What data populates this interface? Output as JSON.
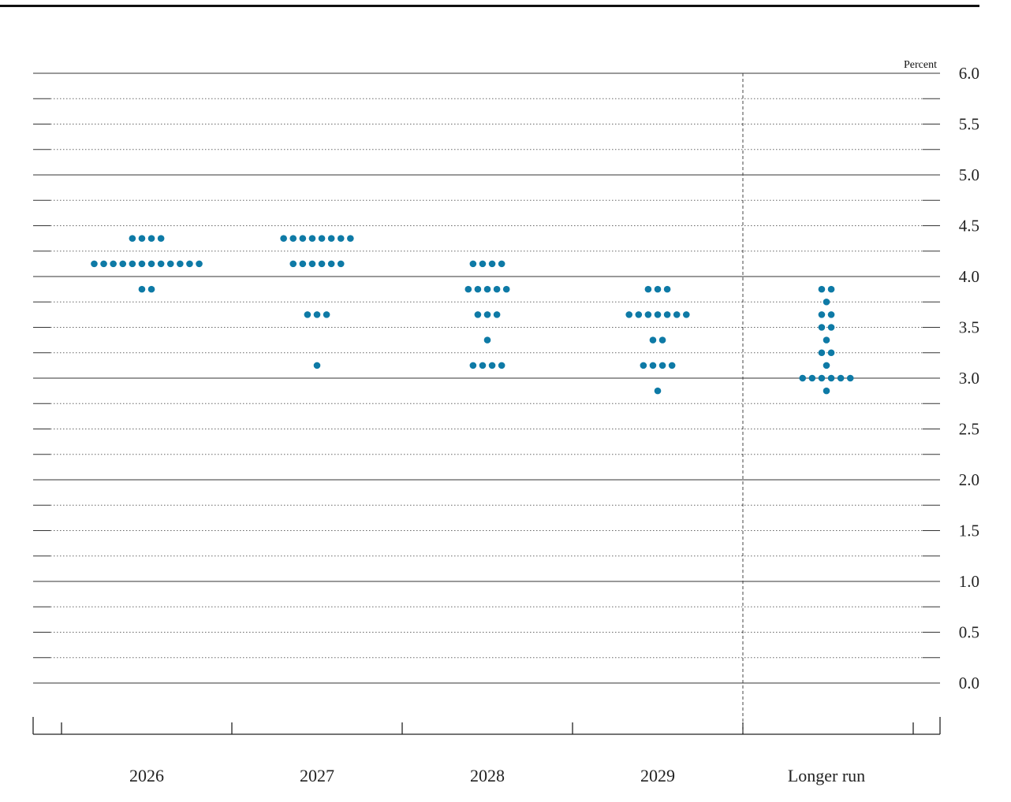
{
  "chart_data": {
    "type": "scatter",
    "unit_label": "Percent",
    "ylim": [
      0,
      6
    ],
    "y_ticks": [
      "6.0",
      "5.5",
      "5.0",
      "4.5",
      "4.0",
      "3.5",
      "3.0",
      "2.5",
      "2.0",
      "1.5",
      "1.0",
      "0.5",
      "0.0"
    ],
    "categories": [
      "2026",
      "2027",
      "2028",
      "2029",
      "Longer run"
    ],
    "dot_color": "#0e7aa6",
    "grid": "dotted every 0.25, solid every 1.0",
    "columns": [
      {
        "category": "2026",
        "points": [
          {
            "y": 4.375,
            "count": 4
          },
          {
            "y": 4.125,
            "count": 12
          },
          {
            "y": 3.875,
            "count": 2
          }
        ]
      },
      {
        "category": "2027",
        "points": [
          {
            "y": 4.375,
            "count": 8
          },
          {
            "y": 4.125,
            "count": 6
          },
          {
            "y": 3.625,
            "count": 3
          },
          {
            "y": 3.125,
            "count": 1
          }
        ]
      },
      {
        "category": "2028",
        "points": [
          {
            "y": 4.125,
            "count": 4
          },
          {
            "y": 3.875,
            "count": 5
          },
          {
            "y": 3.625,
            "count": 3
          },
          {
            "y": 3.375,
            "count": 1
          },
          {
            "y": 3.125,
            "count": 4
          }
        ]
      },
      {
        "category": "2029",
        "points": [
          {
            "y": 3.875,
            "count": 3
          },
          {
            "y": 3.625,
            "count": 7
          },
          {
            "y": 3.375,
            "count": 2
          },
          {
            "y": 3.125,
            "count": 4
          },
          {
            "y": 2.875,
            "count": 1
          }
        ]
      },
      {
        "category": "Longer run",
        "points": [
          {
            "y": 3.875,
            "count": 2
          },
          {
            "y": 3.75,
            "count": 1
          },
          {
            "y": 3.625,
            "count": 2
          },
          {
            "y": 3.5,
            "count": 2
          },
          {
            "y": 3.375,
            "count": 1
          },
          {
            "y": 3.25,
            "count": 2
          },
          {
            "y": 3.125,
            "count": 1
          },
          {
            "y": 3.0,
            "count": 6
          },
          {
            "y": 2.875,
            "count": 1
          }
        ]
      }
    ]
  }
}
